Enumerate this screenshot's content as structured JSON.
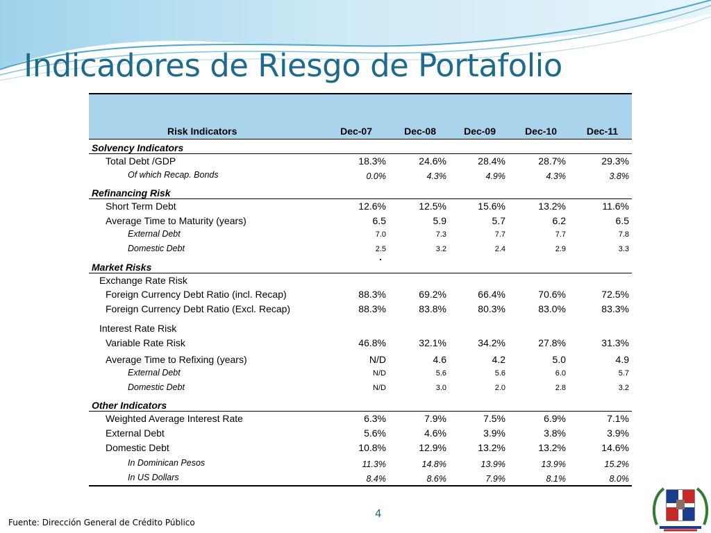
{
  "slide": {
    "title": "Indicadores de Riesgo de Portafolio",
    "source": "Fuente: Dirección General de Crédito Público",
    "page_number": "4"
  },
  "table": {
    "header": {
      "label": "Risk Indicators",
      "years": [
        "Dec-07",
        "Dec-08",
        "Dec-09",
        "Dec-10",
        "Dec-11"
      ]
    },
    "rows": [
      {
        "kind": "section",
        "label": "Solvency Indicators",
        "values": [
          "",
          "",
          "",
          "",
          ""
        ]
      },
      {
        "kind": "item",
        "label": "Total Debt /GDP",
        "values": [
          "18.3%",
          "24.6%",
          "28.4%",
          "28.7%",
          "29.3%"
        ]
      },
      {
        "kind": "small",
        "label": "Of which Recap. Bonds",
        "values": [
          "0.0%",
          "4.3%",
          "4.9%",
          "4.3%",
          "3.8%"
        ]
      },
      {
        "kind": "section",
        "label": "Refinancing Risk",
        "values": [
          "",
          "",
          "",
          "",
          ""
        ]
      },
      {
        "kind": "item",
        "label": "Short Term Debt",
        "values": [
          "12.6%",
          "12.5%",
          "15.6%",
          "13.2%",
          "11.6%"
        ]
      },
      {
        "kind": "item",
        "label": "Average Time to Maturity (years)",
        "values": [
          "6.5",
          "5.9",
          "5.7",
          "6.2",
          "6.5"
        ]
      },
      {
        "kind": "small",
        "label": "External Debt",
        "values": [
          "7.0",
          "7.3",
          "7.7",
          "7.7",
          "7.8"
        ]
      },
      {
        "kind": "small",
        "label": "Domestic Debt",
        "values": [
          "2.5",
          "3.2",
          "2.4",
          "2.9",
          "3.3"
        ]
      },
      {
        "kind": "section",
        "label": "Market Risks",
        "values": [
          "",
          "",
          "",
          "",
          ""
        ]
      },
      {
        "kind": "sub",
        "label": "Exchange Rate Risk",
        "values": [
          "",
          "",
          "",
          "",
          ""
        ]
      },
      {
        "kind": "item",
        "label": "Foreign Currency Debt Ratio (incl. Recap)",
        "values": [
          "88.3%",
          "69.2%",
          "66.4%",
          "70.6%",
          "72.5%"
        ]
      },
      {
        "kind": "item",
        "label": "Foreign Currency Debt Ratio (Excl. Recap)",
        "values": [
          "88.3%",
          "83.8%",
          "80.3%",
          "83.0%",
          "83.3%"
        ]
      },
      {
        "kind": "sub",
        "label": "Interest Rate Risk",
        "values": [
          "",
          "",
          "",
          "",
          ""
        ]
      },
      {
        "kind": "item",
        "label": "Variable Rate Risk",
        "values": [
          "46.8%",
          "32.1%",
          "34.2%",
          "27.8%",
          "31.3%"
        ]
      },
      {
        "kind": "item",
        "label": "Average Time to Refixing (years)",
        "values": [
          "N/D",
          "4.6",
          "4.2",
          "5.0",
          "4.9"
        ]
      },
      {
        "kind": "small",
        "label": "External Debt",
        "values": [
          "N/D",
          "5.6",
          "5.6",
          "6.0",
          "5.7"
        ]
      },
      {
        "kind": "small",
        "label": "Domestic Debt",
        "values": [
          "N/D",
          "3.0",
          "2.0",
          "2.8",
          "3.2"
        ]
      },
      {
        "kind": "section",
        "label": "Other Indicators",
        "values": [
          "",
          "",
          "",
          "",
          ""
        ]
      },
      {
        "kind": "item",
        "label": "Weighted Average Interest Rate",
        "values": [
          "6.3%",
          "7.9%",
          "7.5%",
          "6.9%",
          "7.1%"
        ]
      },
      {
        "kind": "item",
        "label": "External Debt",
        "values": [
          "5.6%",
          "4.6%",
          "3.9%",
          "3.8%",
          "3.9%"
        ]
      },
      {
        "kind": "item",
        "label": "Domestic Debt",
        "values": [
          "10.8%",
          "12.9%",
          "13.2%",
          "13.2%",
          "14.6%"
        ]
      },
      {
        "kind": "small",
        "label": "In Dominican Pesos",
        "values": [
          "11.3%",
          "14.8%",
          "13.9%",
          "13.9%",
          "15.2%"
        ]
      },
      {
        "kind": "small",
        "label": "In US Dollars",
        "values": [
          "8.4%",
          "8.6%",
          "7.9%",
          "8.1%",
          "8.0%"
        ]
      }
    ]
  },
  "colors": {
    "title": "#1c6a8c",
    "header_bg": "#a9d4ec",
    "banner_light": "#cfeaf6",
    "banner_mid": "#7fc4e2"
  },
  "icons": {
    "seal": "national-coat-of-arms-icon"
  }
}
